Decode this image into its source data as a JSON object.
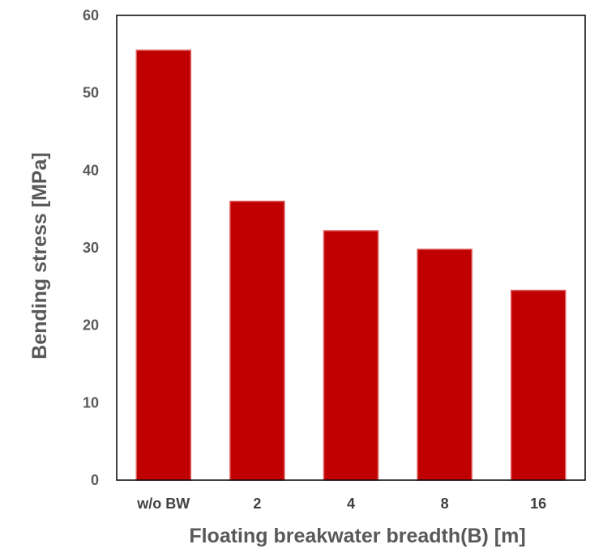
{
  "chart_data": {
    "type": "bar",
    "title": "",
    "xlabel": "Floating breakwater breadth(B) [m]",
    "ylabel": "Bending stress [MPa]",
    "categories": [
      "w/o BW",
      "2",
      "4",
      "8",
      "16"
    ],
    "values": [
      55.5,
      36.0,
      32.2,
      29.8,
      24.5
    ],
    "ylim": [
      0,
      60
    ],
    "yticks": [
      "0",
      "10",
      "20",
      "30",
      "40",
      "50",
      "60"
    ],
    "grid": false,
    "legend": "none",
    "bar_color": "#C00000",
    "bar_edge_color": "#E06060",
    "axis_color": "#000000"
  }
}
